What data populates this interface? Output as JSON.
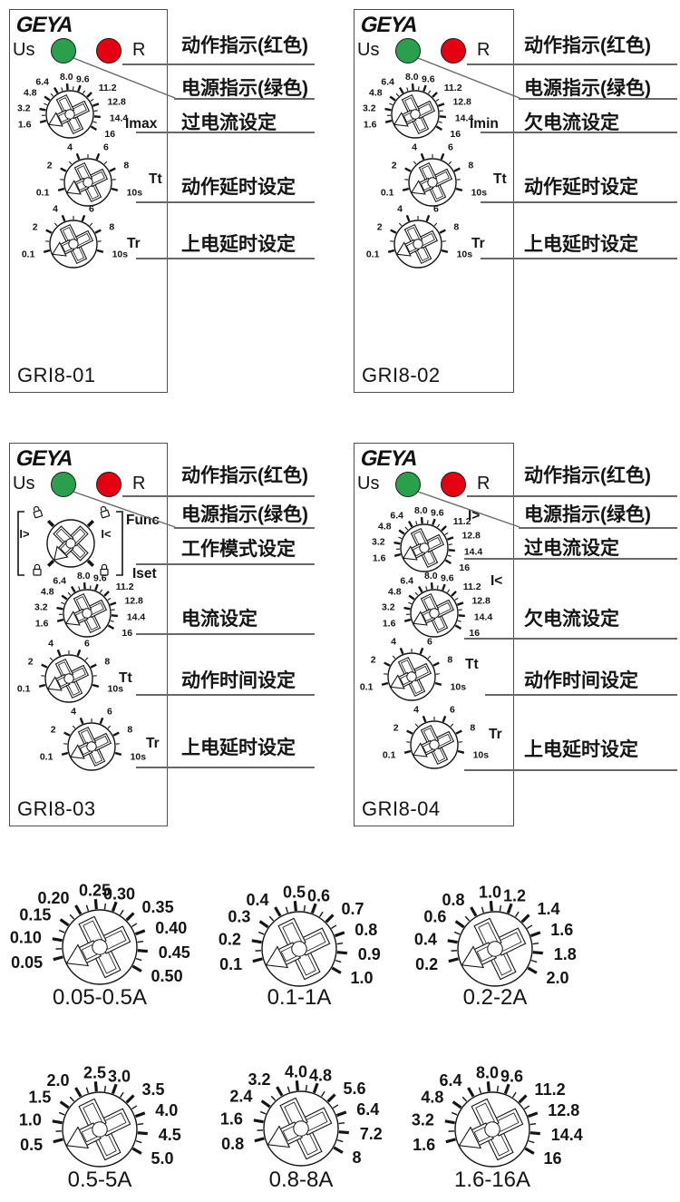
{
  "colors": {
    "led_green": "#2aa04d",
    "led_red": "#e50012",
    "line_gray": "#686868",
    "ink": "#141414"
  },
  "panels": [
    {
      "name": "GRI8-01",
      "logo": "GEYA",
      "power_label": "Us",
      "reset_label": "R",
      "dials": [
        {
          "label": "Imax",
          "scale": [
            "1.6",
            "3.2",
            "4.8",
            "6.4",
            "8.0",
            "9.6",
            "11.2",
            "12.8",
            "14.4",
            "16"
          ]
        },
        {
          "label": "Tt",
          "scale": [
            "0.1",
            "2",
            "4",
            "6",
            "8",
            "10s"
          ]
        },
        {
          "label": "Tr",
          "scale": [
            "0.1",
            "2",
            "4",
            "6",
            "8",
            "10s"
          ]
        }
      ],
      "annotations": [
        "动作指示(红色)",
        "电源指示(绿色)",
        "过电流设定",
        "动作延时设定",
        "上电延时设定"
      ]
    },
    {
      "name": "GRI8-02",
      "logo": "GEYA",
      "power_label": "Us",
      "reset_label": "R",
      "dials": [
        {
          "label": "Imin",
          "scale": [
            "1.6",
            "3.2",
            "4.8",
            "6.4",
            "8.0",
            "9.6",
            "11.2",
            "12.8",
            "14.4",
            "16"
          ]
        },
        {
          "label": "Tt",
          "scale": [
            "0.1",
            "2",
            "4",
            "6",
            "8",
            "10s"
          ]
        },
        {
          "label": "Tr",
          "scale": [
            "0.1",
            "2",
            "4",
            "6",
            "8",
            "10s"
          ]
        }
      ],
      "annotations": [
        "动作指示(红色)",
        "电源指示(绿色)",
        "欠电流设定",
        "动作延时设定",
        "上电延时设定"
      ]
    },
    {
      "name": "GRI8-03",
      "logo": "GEYA",
      "power_label": "Us",
      "reset_label": "R",
      "dials": [
        {
          "label": "Func",
          "left_mark": "I>",
          "right_mark": "I<"
        },
        {
          "label": "Iset",
          "scale": [
            "1.6",
            "3.2",
            "4.8",
            "6.4",
            "8.0",
            "9.6",
            "11.2",
            "12.8",
            "14.4",
            "16"
          ]
        },
        {
          "label": "Tt",
          "scale": [
            "0.1",
            "2",
            "4",
            "6",
            "8",
            "10s"
          ]
        },
        {
          "label": "Tr",
          "scale": [
            "0.1",
            "2",
            "4",
            "6",
            "8",
            "10s"
          ]
        }
      ],
      "annotations": [
        "动作指示(红色)",
        "电源指示(绿色)",
        "工作模式设定",
        "电流设定",
        "动作时间设定",
        "上电延时设定"
      ]
    },
    {
      "name": "GRI8-04",
      "logo": "GEYA",
      "power_label": "Us",
      "reset_label": "R",
      "dials": [
        {
          "label": "I>",
          "scale": [
            "1.6",
            "3.2",
            "4.8",
            "6.4",
            "8.0",
            "9.6",
            "11.2",
            "12.8",
            "14.4",
            "16"
          ]
        },
        {
          "label": "I<",
          "scale": [
            "1.6",
            "3.2",
            "4.8",
            "6.4",
            "8.0",
            "9.6",
            "11.2",
            "12.8",
            "14.4",
            "16"
          ]
        },
        {
          "label": "Tt",
          "scale": [
            "0.1",
            "2",
            "4",
            "6",
            "8",
            "10s"
          ]
        },
        {
          "label": "Tr",
          "scale": [
            "0.1",
            "2",
            "4",
            "6",
            "8",
            "10s"
          ]
        }
      ],
      "annotations": [
        "动作指示(红色)",
        "电源指示(绿色)",
        "过电流设定",
        "欠电流设定",
        "动作时间设定",
        "上电延时设定"
      ]
    }
  ],
  "range_dials": [
    {
      "caption": "0.05-0.5A",
      "scale": [
        "0.05",
        "0.10",
        "0.15",
        "0.20",
        "0.25",
        "0.30",
        "0.35",
        "0.40",
        "0.45",
        "0.50"
      ]
    },
    {
      "caption": "0.1-1A",
      "scale": [
        "0.1",
        "0.2",
        "0.3",
        "0.4",
        "0.5",
        "0.6",
        "0.7",
        "0.8",
        "0.9",
        "1.0"
      ]
    },
    {
      "caption": "0.2-2A",
      "scale": [
        "0.2",
        "0.4",
        "0.6",
        "0.8",
        "1.0",
        "1.2",
        "1.4",
        "1.6",
        "1.8",
        "2.0"
      ]
    },
    {
      "caption": "0.5-5A",
      "scale": [
        "0.5",
        "1.0",
        "1.5",
        "2.0",
        "2.5",
        "3.0",
        "3.5",
        "4.0",
        "4.5",
        "5.0"
      ]
    },
    {
      "caption": "0.8-8A",
      "scale": [
        "0.8",
        "1.6",
        "2.4",
        "3.2",
        "4.0",
        "4.8",
        "5.6",
        "6.4",
        "7.2",
        "8"
      ]
    },
    {
      "caption": "1.6-16A",
      "scale": [
        "1.6",
        "3.2",
        "4.8",
        "6.4",
        "8.0",
        "9.6",
        "11.2",
        "12.8",
        "14.4",
        "16"
      ]
    }
  ]
}
